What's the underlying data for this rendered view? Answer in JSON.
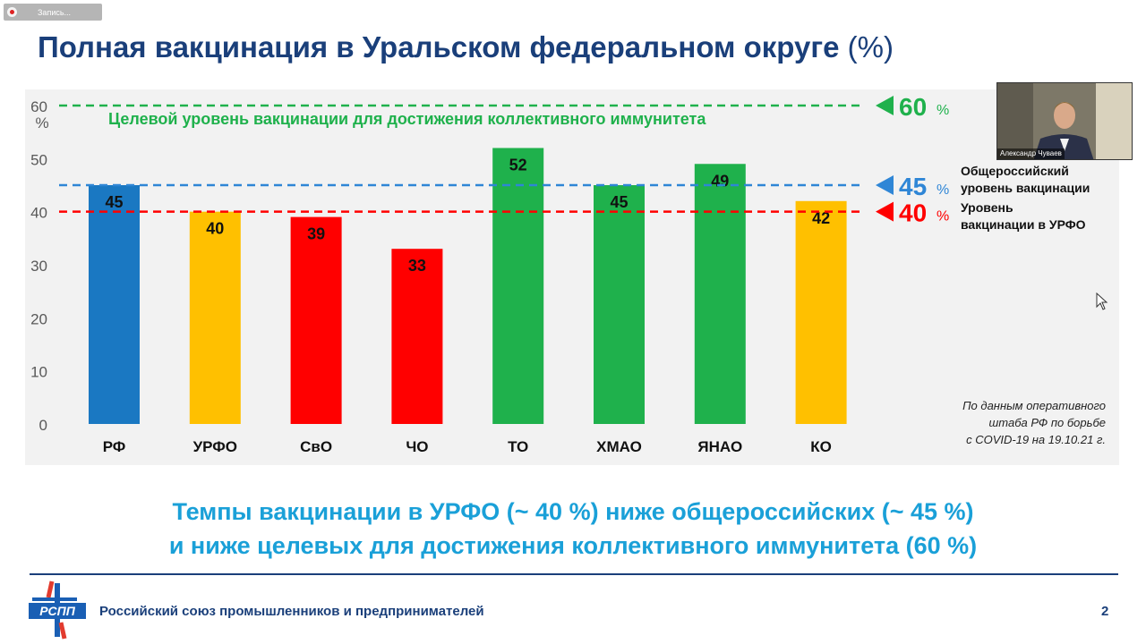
{
  "recording": {
    "label": "Запись..."
  },
  "slide": {
    "title": "Полная вакцинация в Уральском федеральном округе",
    "title_unit": "(%)",
    "message_line1": "Темпы вакцинации в УРФО (~ 40 %) ниже общероссийских (~ 45 %)",
    "message_line2": "и ниже целевых для достижения коллективного иммунитета (60 %)",
    "footer_org": "Российский союз промышленников и предпринимателей",
    "page_number": "2",
    "logo_text": "РСПП"
  },
  "video": {
    "participant_name": "Александр Чуваев"
  },
  "chart_data": {
    "type": "bar",
    "categories": [
      "РФ",
      "УРФО",
      "СвО",
      "ЧО",
      "ТО",
      "ХМАО",
      "ЯНАО",
      "КО"
    ],
    "values": [
      45,
      40,
      39,
      33,
      52,
      45,
      49,
      42
    ],
    "bar_colors": [
      "#1a78c2",
      "#ffc000",
      "#ff0000",
      "#ff0000",
      "#1fb14c",
      "#1fb14c",
      "#1fb14c",
      "#ffc000"
    ],
    "ylim": [
      0,
      60
    ],
    "yticks": [
      "0",
      "10",
      "20",
      "30",
      "40",
      "50",
      "60"
    ],
    "y_unit": "%",
    "grid": false,
    "reference_lines": [
      {
        "value": 60,
        "color": "#1fb14c",
        "marker": "60",
        "unit": "%",
        "text": "Целевой уровень вакцинации для достижения коллективного иммунитета"
      },
      {
        "value": 45,
        "color": "#2f86d6",
        "marker": "45",
        "unit": "%",
        "text_line1": "Общероссийский",
        "text_line2": "уровень вакцинации"
      },
      {
        "value": 40,
        "color": "#ff0000",
        "marker": "40",
        "unit": "%",
        "text_line1": "Уровень",
        "text_line2": "вакцинации в УРФО"
      }
    ],
    "source_note": [
      "По данным оперативного",
      "штаба РФ по борьбе",
      "с COVID-19 на 19.10.21 г."
    ]
  }
}
